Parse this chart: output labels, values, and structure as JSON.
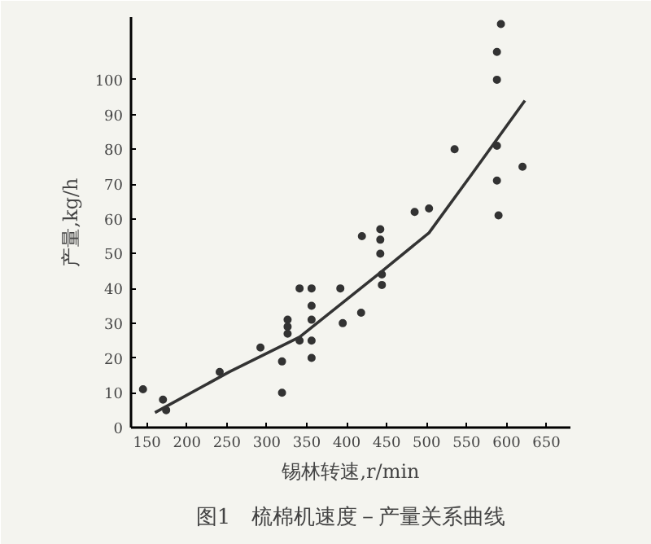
{
  "chart_data": {
    "type": "scatter",
    "xlabel": "锡林转速,r/min",
    "ylabel": "产量,kg/h",
    "annotations": [
      "图1　梳棉机速度－产量关系曲线"
    ],
    "series": [
      {
        "marker": "circle",
        "color": "#333333",
        "x": [
          593,
          588,
          588,
          588,
          620,
          588,
          590,
          535,
          503,
          485,
          419,
          442,
          442,
          442,
          444,
          444,
          418,
          392,
          395,
          356,
          341,
          356,
          356,
          326,
          326,
          326,
          341,
          356,
          356,
          319,
          319,
          292,
          241,
          170,
          174,
          145
        ],
        "values": [
          116,
          108,
          100,
          81,
          75,
          71,
          61,
          80,
          63,
          62,
          55,
          57,
          54,
          50,
          44,
          41,
          33,
          40,
          30,
          40,
          40,
          35,
          31,
          31,
          29,
          27,
          25,
          25,
          20,
          19,
          10,
          23,
          16,
          8,
          5,
          11
        ]
      },
      {
        "type": "line",
        "marker": "none",
        "color": "#333333",
        "x": [
          160,
          253,
          341,
          439,
          503,
          557,
          623
        ],
        "values": [
          4.3,
          16,
          26,
          44,
          56,
          73,
          94
        ]
      }
    ],
    "xlim": [
      130,
      680
    ],
    "ylim": [
      0,
      118
    ],
    "xticks": [
      150,
      200,
      250,
      300,
      350,
      400,
      450,
      500,
      550,
      600,
      650
    ],
    "yticks": [
      0,
      10,
      20,
      30,
      40,
      50,
      60,
      70,
      80,
      90,
      100
    ],
    "grid": false,
    "line_style": "solid"
  }
}
